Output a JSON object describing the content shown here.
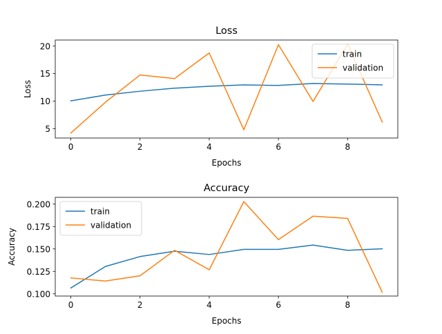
{
  "chart_data": [
    {
      "type": "line",
      "title": "Loss",
      "xlabel": "Epochs",
      "ylabel": "Loss",
      "x": [
        0,
        1,
        2,
        3,
        4,
        5,
        6,
        7,
        8,
        9
      ],
      "xlim": [
        -0.45,
        9.45
      ],
      "ylim": [
        3.3,
        21.1
      ],
      "xticks": [
        0,
        2,
        4,
        6,
        8
      ],
      "yticks": [
        5,
        10,
        15,
        20
      ],
      "legend_position": "upper right",
      "series": [
        {
          "name": "train",
          "color": "#1f77b4",
          "values": [
            10.05,
            11.1,
            11.8,
            12.35,
            12.7,
            12.95,
            12.85,
            13.2,
            13.1,
            12.95
          ]
        },
        {
          "name": "validation",
          "color": "#ff7f0e",
          "values": [
            4.2,
            9.8,
            14.75,
            14.1,
            18.75,
            4.8,
            20.25,
            9.95,
            20.35,
            6.2
          ]
        }
      ]
    },
    {
      "type": "line",
      "title": "Accuracy",
      "xlabel": "Epochs",
      "ylabel": "Accuracy",
      "x": [
        0,
        1,
        2,
        3,
        4,
        5,
        6,
        7,
        8,
        9
      ],
      "xlim": [
        -0.45,
        9.45
      ],
      "ylim": [
        0.0975,
        0.2075
      ],
      "xticks": [
        0,
        2,
        4,
        6,
        8
      ],
      "yticks": [
        0.1,
        0.125,
        0.15,
        0.175,
        0.2
      ],
      "ytick_labels": [
        "0.100",
        "0.125",
        "0.150",
        "0.175",
        "0.200"
      ],
      "legend_position": "upper left",
      "series": [
        {
          "name": "train",
          "color": "#1f77b4",
          "values": [
            0.1065,
            0.1305,
            0.1415,
            0.1475,
            0.1438,
            0.1495,
            0.1495,
            0.1543,
            0.1485,
            0.1502
          ]
        },
        {
          "name": "validation",
          "color": "#ff7f0e",
          "values": [
            0.1177,
            0.1142,
            0.1201,
            0.1485,
            0.1268,
            0.2028,
            0.1604,
            0.1865,
            0.184,
            0.1017
          ]
        }
      ]
    }
  ]
}
